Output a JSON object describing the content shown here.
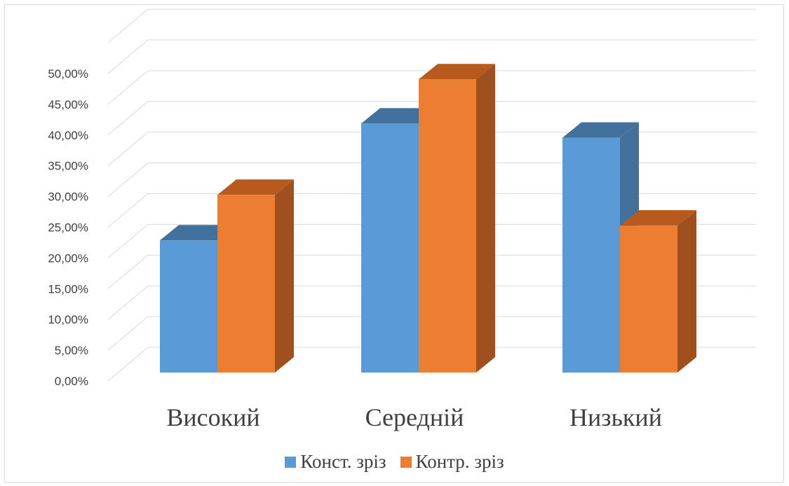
{
  "chart_data": {
    "type": "bar",
    "style": "3d-clustered-column",
    "categories": [
      "Високий",
      "Середній",
      "Низький"
    ],
    "series": [
      {
        "name": "Конст. зріз",
        "values": [
          21.5,
          40.5,
          38.2
        ],
        "color": "#5b9bd5",
        "side_color": "#41719c",
        "top_color": "#41719c"
      },
      {
        "name": "Контр. зріз",
        "values": [
          28.9,
          47.7,
          23.9
        ],
        "color": "#ed7d31",
        "side_color": "#a0501e",
        "top_color": "#b85a1d"
      }
    ],
    "y_ticks": [
      "0,00%",
      "5,00%",
      "10,00%",
      "15,00%",
      "20,00%",
      "25,00%",
      "30,00%",
      "35,00%",
      "40,00%",
      "45,00%",
      "50,00%"
    ],
    "ylim": [
      0,
      55
    ],
    "grid": true,
    "legend_position": "bottom",
    "title": "",
    "xlabel": "",
    "ylabel": ""
  }
}
